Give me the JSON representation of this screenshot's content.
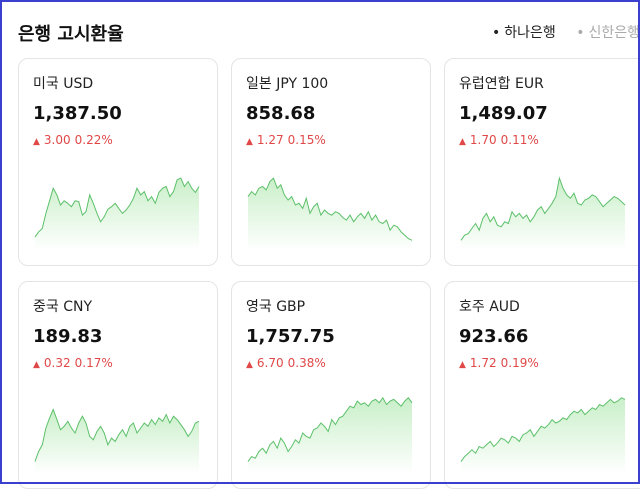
{
  "header": {
    "title": "은행 고시환율",
    "banks": [
      {
        "label": "하나은행",
        "active": true
      },
      {
        "label": "신한은행",
        "active": false
      }
    ]
  },
  "cards": [
    {
      "name": "미국 USD",
      "rate": "1,387.50",
      "change": "3.00",
      "percent": "0.22%",
      "direction": "up",
      "trend": [
        12,
        18,
        22,
        40,
        55,
        70,
        62,
        50,
        55,
        52,
        48,
        55,
        54,
        38,
        42,
        62,
        52,
        40,
        30,
        36,
        45,
        48,
        52,
        46,
        40,
        44,
        50,
        58,
        70,
        62,
        66,
        55,
        60,
        52,
        65,
        70,
        72,
        60,
        66,
        80,
        82,
        72,
        78,
        70,
        65,
        72
      ]
    },
    {
      "name": "일본 JPY 100",
      "rate": "858.68",
      "change": "1.27",
      "percent": "0.15%",
      "direction": "up",
      "trend": [
        60,
        66,
        62,
        70,
        72,
        68,
        78,
        82,
        70,
        74,
        62,
        56,
        60,
        50,
        52,
        46,
        58,
        40,
        48,
        52,
        38,
        44,
        40,
        38,
        42,
        40,
        35,
        32,
        38,
        30,
        36,
        40,
        34,
        42,
        32,
        38,
        30,
        28,
        32,
        20,
        26,
        24,
        18,
        14,
        10,
        8
      ]
    },
    {
      "name": "유럽연합 EUR",
      "rate": "1,489.07",
      "change": "1.70",
      "percent": "0.11%",
      "direction": "up",
      "trend": [
        8,
        14,
        16,
        22,
        28,
        20,
        34,
        40,
        30,
        36,
        26,
        24,
        30,
        28,
        42,
        36,
        40,
        34,
        38,
        30,
        36,
        44,
        48,
        40,
        46,
        52,
        60,
        82,
        70,
        62,
        58,
        64,
        52,
        50,
        56,
        58,
        62,
        60,
        54,
        48,
        52,
        56,
        60,
        58,
        54,
        50
      ]
    },
    {
      "name": "중국 CNY",
      "rate": "189.83",
      "change": "0.32",
      "percent": "0.17%",
      "direction": "up",
      "trend": [
        10,
        22,
        30,
        50,
        62,
        72,
        60,
        48,
        52,
        58,
        50,
        44,
        56,
        64,
        56,
        40,
        36,
        46,
        52,
        44,
        30,
        38,
        34,
        42,
        48,
        40,
        52,
        56,
        44,
        50,
        56,
        52,
        60,
        54,
        62,
        58,
        66,
        56,
        64,
        60,
        54,
        48,
        40,
        46,
        56,
        58
      ]
    },
    {
      "name": "영국 GBP",
      "rate": "1,757.75",
      "change": "6.70",
      "percent": "0.38%",
      "direction": "up",
      "trend": [
        10,
        16,
        14,
        22,
        26,
        20,
        30,
        34,
        26,
        38,
        32,
        22,
        28,
        36,
        32,
        44,
        40,
        38,
        48,
        50,
        56,
        52,
        46,
        60,
        54,
        62,
        64,
        70,
        76,
        74,
        82,
        78,
        80,
        76,
        82,
        84,
        80,
        86,
        78,
        82,
        84,
        80,
        76,
        82,
        86,
        80
      ]
    },
    {
      "name": "호주 AUD",
      "rate": "923.66",
      "change": "1.72",
      "percent": "0.19%",
      "direction": "up",
      "trend": [
        10,
        16,
        20,
        24,
        20,
        28,
        26,
        30,
        34,
        28,
        32,
        38,
        36,
        32,
        40,
        38,
        34,
        42,
        44,
        48,
        40,
        46,
        52,
        50,
        54,
        60,
        56,
        58,
        62,
        60,
        66,
        70,
        68,
        72,
        66,
        70,
        74,
        72,
        78,
        76,
        80,
        84,
        80,
        82,
        86,
        84
      ]
    }
  ],
  "chart_colors": {
    "line": "#5cc06a",
    "fill_top": "#c9efc9",
    "fill_bottom": "#ffffff",
    "up": "#e04848"
  }
}
